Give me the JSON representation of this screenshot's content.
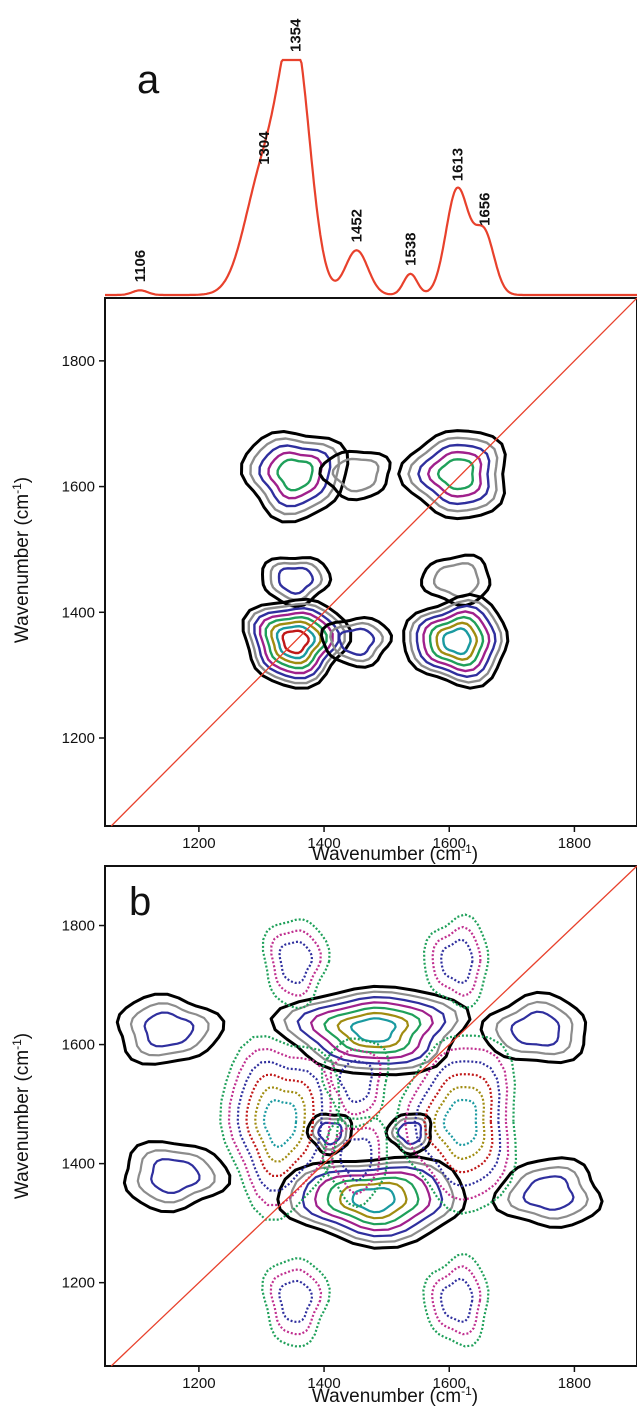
{
  "chart_data": [
    {
      "panel": "a",
      "type": "line",
      "color": "#e8412c",
      "peaks": [
        {
          "label": "1106",
          "x": 1106,
          "y": 0.02
        },
        {
          "label": "1304",
          "x": 1304,
          "y": 0.52
        },
        {
          "label": "1354",
          "x": 1354,
          "y": 1.0
        },
        {
          "label": "1452",
          "x": 1452,
          "y": 0.19
        },
        {
          "label": "1538",
          "x": 1538,
          "y": 0.09
        },
        {
          "label": "1613",
          "x": 1613,
          "y": 0.45
        },
        {
          "label": "1656",
          "x": 1656,
          "y": 0.26
        }
      ]
    },
    {
      "panel": "a",
      "type": "contour",
      "xlabel": "Wavenumber (cm",
      "ylabel": "Wavenumber (cm",
      "unit_sup": "-1",
      "xlim": [
        1050,
        1900
      ],
      "ylim": [
        1060,
        1900
      ],
      "xticks": [
        "1200",
        "1400",
        "1600",
        "1800"
      ],
      "yticks": [
        "1200",
        "1400",
        "1600",
        "1800"
      ],
      "diagonal_color": "#e8412c",
      "contour_colors": [
        "#000000",
        "#8c8c8c",
        "#2f2f9e",
        "#a0208c",
        "#1fa05a",
        "#a08c10",
        "#1a9aa0",
        "#c01818"
      ],
      "peaks": [
        {
          "x": 1354,
          "y": 1620,
          "levels": 5
        },
        {
          "x": 1452,
          "y": 1620,
          "levels": 2
        },
        {
          "x": 1613,
          "y": 1620,
          "levels": 5
        },
        {
          "x": 1354,
          "y": 1452,
          "levels": 3
        },
        {
          "x": 1613,
          "y": 1452,
          "levels": 2
        },
        {
          "x": 1354,
          "y": 1354,
          "levels": 8
        },
        {
          "x": 1452,
          "y": 1354,
          "levels": 3
        },
        {
          "x": 1613,
          "y": 1354,
          "levels": 7
        }
      ]
    },
    {
      "panel": "b",
      "type": "contour",
      "xlabel": "Wavenumber (cm",
      "ylabel": "Wavenumber (cm",
      "unit_sup": "-1",
      "xlim": [
        1050,
        1900
      ],
      "ylim": [
        1060,
        1900
      ],
      "xticks": [
        "1200",
        "1400",
        "1600",
        "1800"
      ],
      "yticks": [
        "1200",
        "1400",
        "1600",
        "1800"
      ],
      "diagonal_color": "#e8412c",
      "contour_colors": [
        "#000000",
        "#8c8c8c",
        "#2f2f9e",
        "#a0208c",
        "#1fa05a",
        "#a08c10",
        "#1a9aa0",
        "#c01818"
      ],
      "positive_regions": [
        {
          "x": 1480,
          "y": 1625
        },
        {
          "x": 1480,
          "y": 1340
        },
        {
          "x": 1410,
          "y": 1452
        },
        {
          "x": 1538,
          "y": 1452
        },
        {
          "x": 1150,
          "y": 1625
        },
        {
          "x": 1160,
          "y": 1380
        },
        {
          "x": 1740,
          "y": 1625
        },
        {
          "x": 1760,
          "y": 1350
        }
      ],
      "negative_regions": [
        {
          "x": 1354,
          "y": 1740
        },
        {
          "x": 1613,
          "y": 1740
        },
        {
          "x": 1330,
          "y": 1470
        },
        {
          "x": 1620,
          "y": 1470
        },
        {
          "x": 1452,
          "y": 1540
        },
        {
          "x": 1452,
          "y": 1410
        },
        {
          "x": 1354,
          "y": 1170
        },
        {
          "x": 1613,
          "y": 1170
        }
      ]
    }
  ],
  "panels": {
    "a": {
      "letter": "a"
    },
    "b": {
      "letter": "b"
    }
  }
}
